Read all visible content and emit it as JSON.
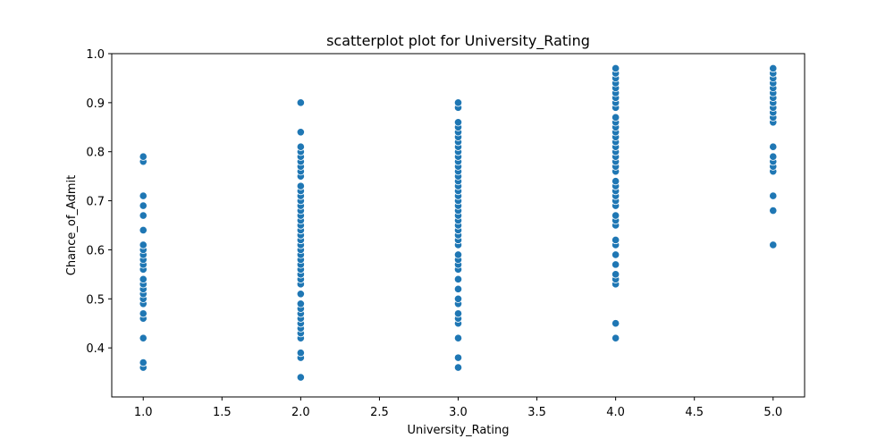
{
  "chart_data": {
    "type": "scatter",
    "title": "scatterplot plot for University_Rating",
    "xlabel": "University_Rating",
    "ylabel": "Chance_of_Admit",
    "xlim": [
      0.8,
      5.2
    ],
    "ylim": [
      0.3,
      1.0
    ],
    "x_ticks": [
      1.0,
      1.5,
      2.0,
      2.5,
      3.0,
      3.5,
      4.0,
      4.5,
      5.0
    ],
    "x_tick_labels": [
      "1.0",
      "1.5",
      "2.0",
      "2.5",
      "3.0",
      "3.5",
      "4.0",
      "4.5",
      "5.0"
    ],
    "y_ticks": [
      0.4,
      0.5,
      0.6,
      0.7,
      0.8,
      0.9,
      1.0
    ],
    "y_tick_labels": [
      "0.4",
      "0.5",
      "0.6",
      "0.7",
      "0.8",
      "0.9",
      "1.0"
    ],
    "grid": false,
    "marker_color": "#1f77b4",
    "marker_edge_color": "#ffffff",
    "points": [
      {
        "x": 1,
        "ys": [
          0.36,
          0.37,
          0.42,
          0.46,
          0.47,
          0.49,
          0.5,
          0.51,
          0.52,
          0.53,
          0.54,
          0.56,
          0.57,
          0.58,
          0.59,
          0.6,
          0.61,
          0.64,
          0.67,
          0.69,
          0.71,
          0.78,
          0.79
        ]
      },
      {
        "x": 2,
        "ys": [
          0.34,
          0.38,
          0.39,
          0.42,
          0.43,
          0.44,
          0.45,
          0.46,
          0.47,
          0.48,
          0.49,
          0.51,
          0.53,
          0.54,
          0.55,
          0.56,
          0.57,
          0.58,
          0.59,
          0.6,
          0.61,
          0.62,
          0.63,
          0.64,
          0.65,
          0.66,
          0.67,
          0.68,
          0.69,
          0.7,
          0.71,
          0.72,
          0.73,
          0.75,
          0.76,
          0.77,
          0.78,
          0.79,
          0.8,
          0.81,
          0.84,
          0.9
        ]
      },
      {
        "x": 3,
        "ys": [
          0.36,
          0.38,
          0.42,
          0.45,
          0.46,
          0.47,
          0.49,
          0.5,
          0.52,
          0.54,
          0.56,
          0.57,
          0.58,
          0.59,
          0.61,
          0.62,
          0.63,
          0.64,
          0.65,
          0.66,
          0.67,
          0.68,
          0.69,
          0.7,
          0.71,
          0.72,
          0.73,
          0.74,
          0.75,
          0.76,
          0.77,
          0.78,
          0.79,
          0.8,
          0.81,
          0.82,
          0.83,
          0.84,
          0.85,
          0.86,
          0.89,
          0.9
        ]
      },
      {
        "x": 4,
        "ys": [
          0.42,
          0.45,
          0.53,
          0.54,
          0.55,
          0.57,
          0.59,
          0.61,
          0.62,
          0.65,
          0.66,
          0.67,
          0.69,
          0.7,
          0.71,
          0.72,
          0.73,
          0.74,
          0.76,
          0.77,
          0.78,
          0.79,
          0.8,
          0.81,
          0.82,
          0.83,
          0.84,
          0.85,
          0.86,
          0.87,
          0.89,
          0.9,
          0.91,
          0.92,
          0.93,
          0.94,
          0.95,
          0.96,
          0.97
        ]
      },
      {
        "x": 5,
        "ys": [
          0.61,
          0.68,
          0.71,
          0.76,
          0.77,
          0.78,
          0.79,
          0.81,
          0.86,
          0.87,
          0.88,
          0.89,
          0.9,
          0.91,
          0.92,
          0.93,
          0.94,
          0.95,
          0.96,
          0.97
        ]
      }
    ]
  }
}
